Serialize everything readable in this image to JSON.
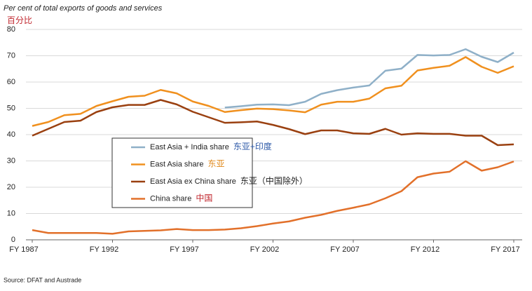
{
  "chart_data": {
    "type": "line",
    "title": "Per cent of total exports of goods and services",
    "subtitle": "百分比",
    "source": "Source: DFAT and Austrade",
    "x": [
      1987,
      1988,
      1989,
      1990,
      1991,
      1992,
      1993,
      1994,
      1995,
      1996,
      1997,
      1998,
      1999,
      2000,
      2001,
      2002,
      2003,
      2004,
      2005,
      2006,
      2007,
      2008,
      2009,
      2010,
      2011,
      2012,
      2013,
      2014,
      2015,
      2016,
      2017
    ],
    "xlim": [
      1987,
      2017
    ],
    "xticks": [
      {
        "value": 1987,
        "label": "FY 1987"
      },
      {
        "value": 1992,
        "label": "FY 1992"
      },
      {
        "value": 1997,
        "label": "FY 1997"
      },
      {
        "value": 2002,
        "label": "FY 2002"
      },
      {
        "value": 2007,
        "label": "FY 2007"
      },
      {
        "value": 2012,
        "label": "FY 2012"
      },
      {
        "value": 2017,
        "label": "FY 2017"
      }
    ],
    "ylim": [
      0,
      80
    ],
    "yticks": [
      0,
      10,
      20,
      30,
      40,
      50,
      60,
      70,
      80
    ],
    "grid": true,
    "series": [
      {
        "name": "East Asia + India share",
        "color": "#8fb0c8",
        "note": "东亚+印度",
        "note_color": "#2e5aa8",
        "values": [
          null,
          null,
          null,
          null,
          null,
          null,
          null,
          null,
          null,
          null,
          null,
          null,
          50.3,
          50.8,
          51.4,
          51.5,
          51.2,
          52.5,
          55.5,
          56.9,
          57.9,
          58.7,
          64.3,
          65.1,
          70.3,
          70.1,
          70.3,
          72.5,
          69.6,
          67.6,
          71.2
        ]
      },
      {
        "name": "East Asia share",
        "color": "#f0901e",
        "note": "东亚",
        "note_color": "#e08a1e",
        "values": [
          43.3,
          44.8,
          47.4,
          47.9,
          50.9,
          52.7,
          54.4,
          54.8,
          57.0,
          55.7,
          52.6,
          50.9,
          48.6,
          49.3,
          49.9,
          49.7,
          49.2,
          48.5,
          51.4,
          52.5,
          52.5,
          53.7,
          57.6,
          58.6,
          64.4,
          65.4,
          66.2,
          69.5,
          65.8,
          63.5,
          66.0
        ]
      },
      {
        "name": "East Asia ex China share",
        "color": "#9a4010",
        "note": "东亚（中国除外）",
        "note_color": "#222222",
        "values": [
          39.6,
          42.2,
          44.8,
          45.3,
          48.6,
          50.4,
          51.3,
          51.3,
          53.2,
          51.5,
          48.7,
          46.6,
          44.5,
          44.7,
          45.0,
          43.7,
          42.1,
          40.2,
          41.6,
          41.6,
          40.5,
          40.3,
          42.2,
          40.0,
          40.5,
          40.3,
          40.3,
          39.6,
          39.6,
          36.0,
          36.3
        ]
      },
      {
        "name": "China share",
        "color": "#e2702a",
        "note": "中国",
        "note_color": "#c0262d",
        "values": [
          3.7,
          2.6,
          2.6,
          2.6,
          2.6,
          2.3,
          3.2,
          3.4,
          3.6,
          4.1,
          3.7,
          3.7,
          3.9,
          4.4,
          5.2,
          6.2,
          7.0,
          8.4,
          9.5,
          11.0,
          12.2,
          13.5,
          15.8,
          18.5,
          23.8,
          25.2,
          25.9,
          29.9,
          26.3,
          27.6,
          29.8
        ]
      }
    ]
  }
}
